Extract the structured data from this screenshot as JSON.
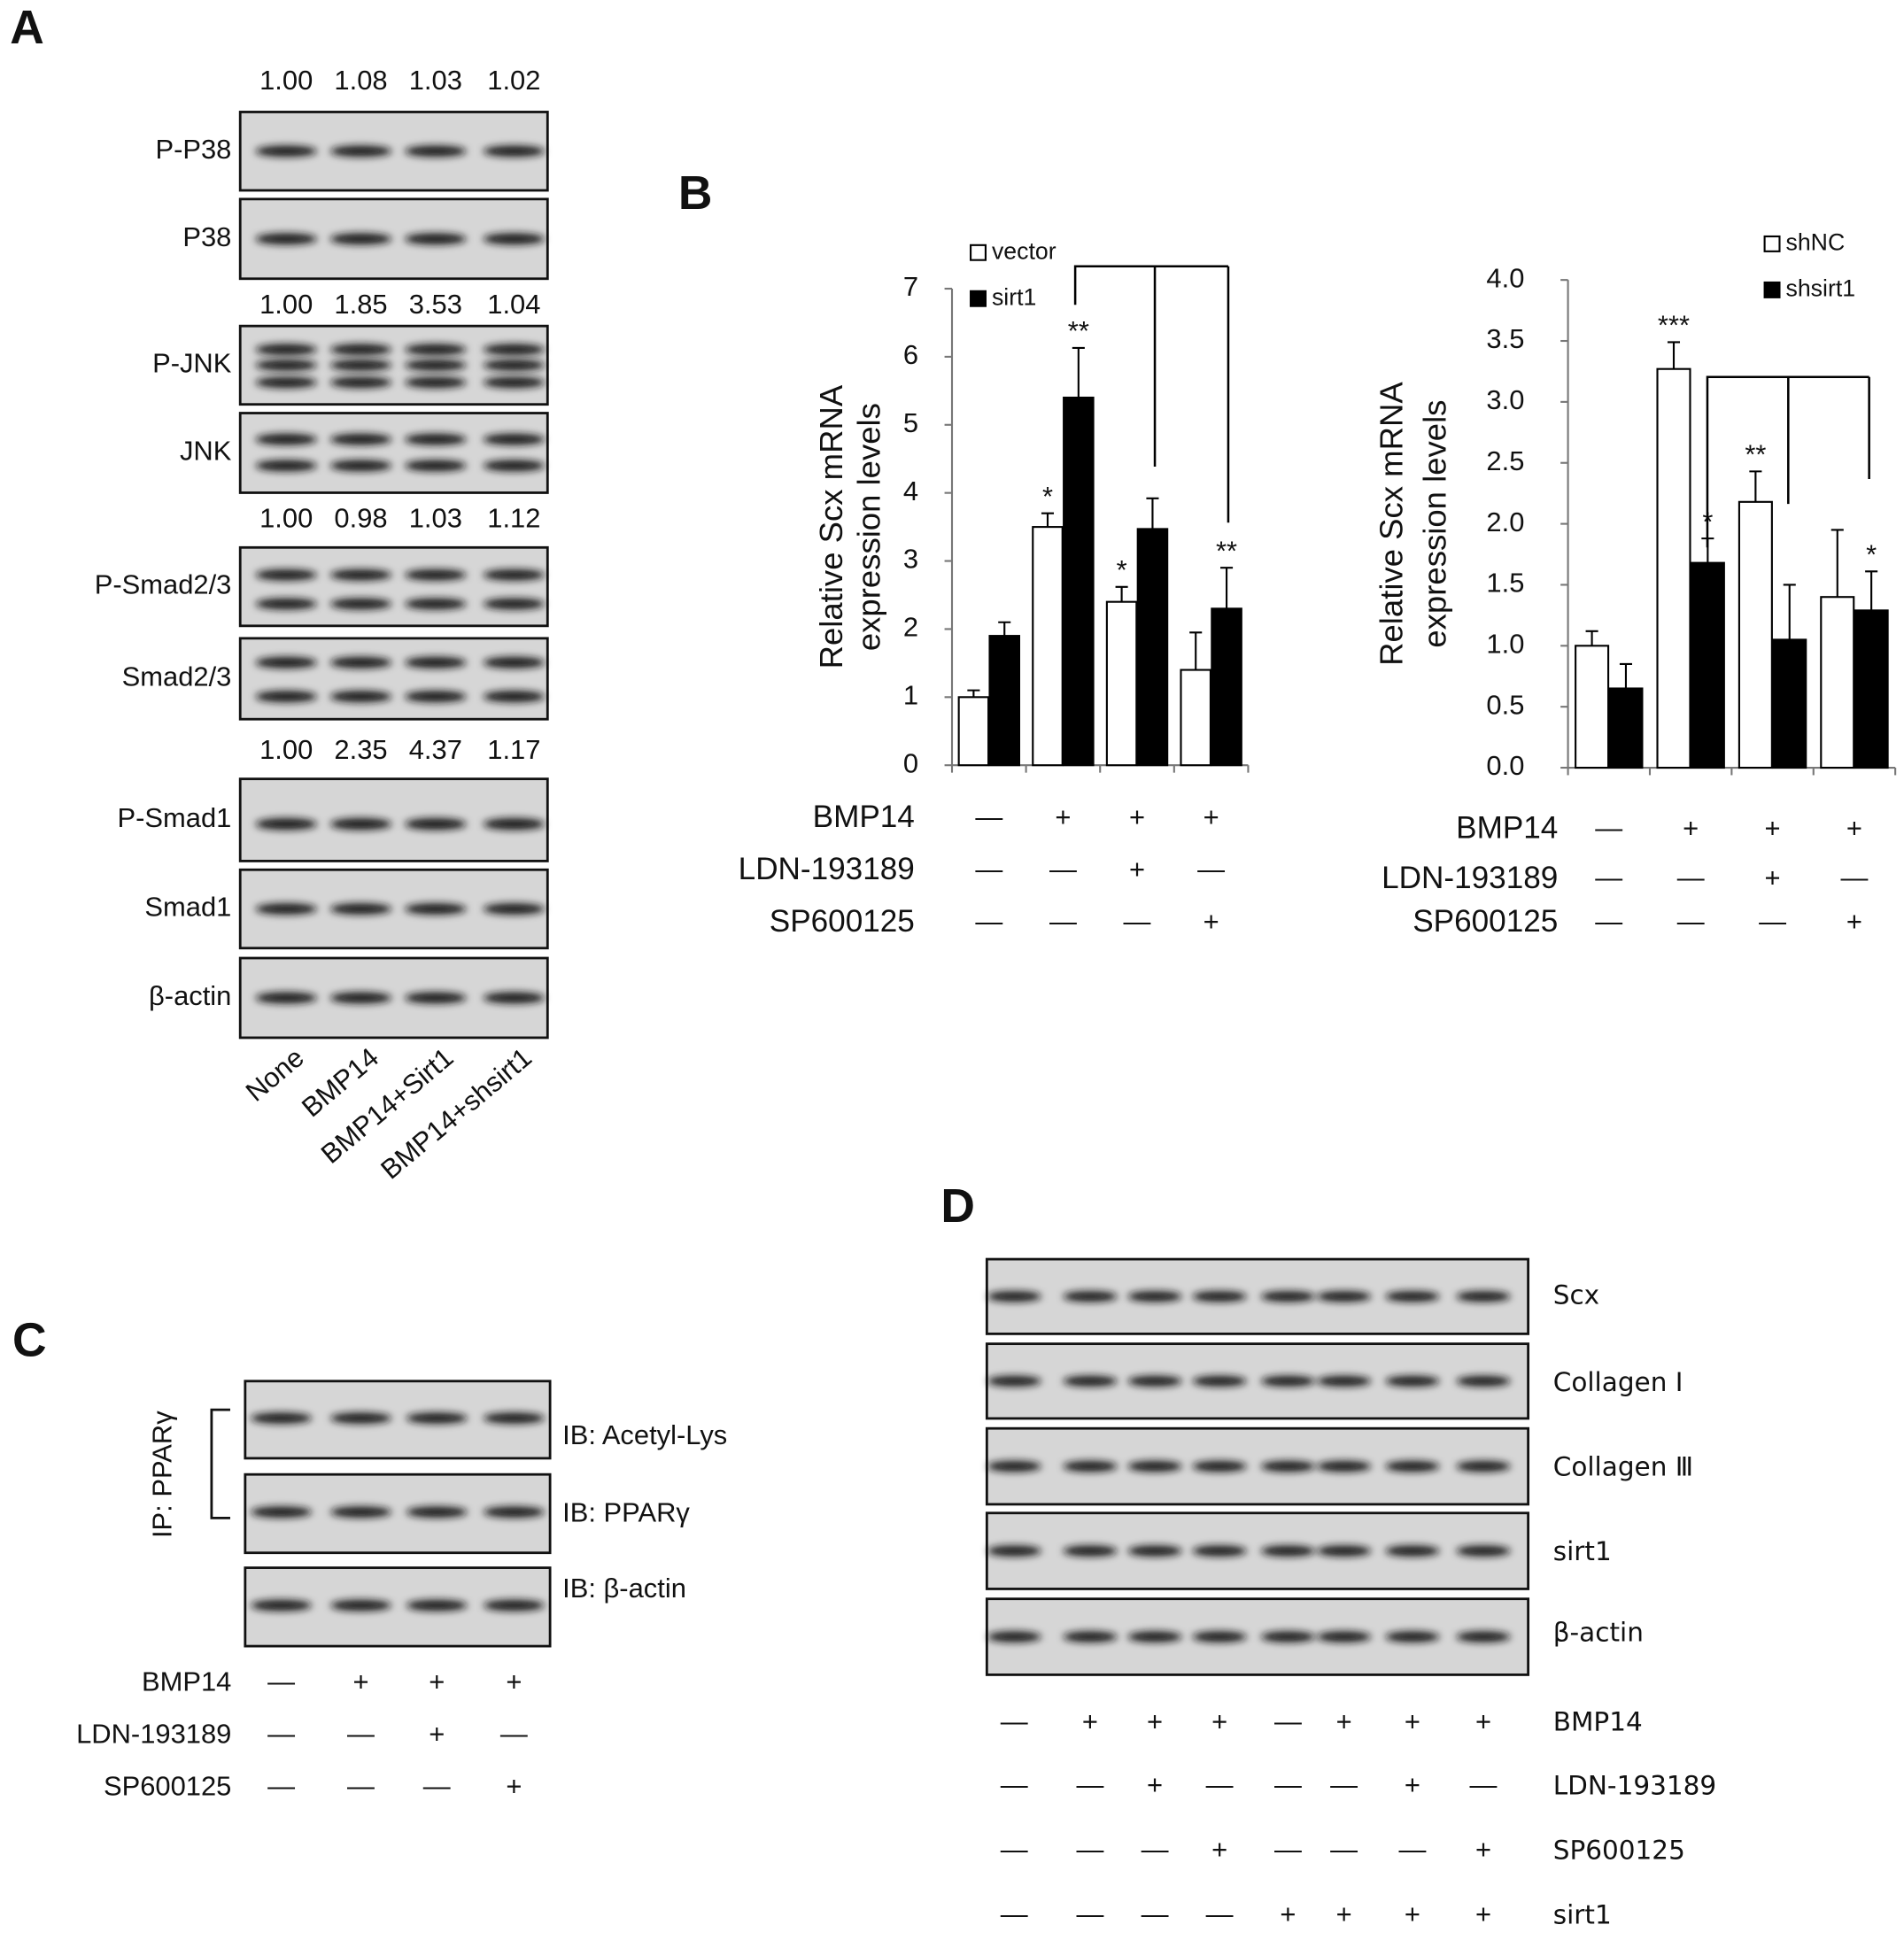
{
  "panel_labels": {
    "a": "A",
    "b": "B",
    "c": "C",
    "d": "D"
  },
  "panel_a": {
    "groups": [
      {
        "ratios": [
          "1.00",
          "1.08",
          "1.03",
          "1.02"
        ],
        "blots": [
          "P-P38",
          "P38"
        ]
      },
      {
        "ratios": [
          "1.00",
          "1.85",
          "3.53",
          "1.04"
        ],
        "blots": [
          "P-JNK",
          "JNK"
        ]
      },
      {
        "ratios": [
          "1.00",
          "0.98",
          "1.03",
          "1.12"
        ],
        "blots": [
          "P-Smad2/3",
          "Smad2/3"
        ]
      },
      {
        "ratios": [
          "1.00",
          "2.35",
          "4.37",
          "1.17"
        ],
        "blots": [
          "P-Smad1",
          "Smad1",
          "β-actin"
        ]
      }
    ],
    "lanes": [
      "None",
      "BMP14",
      "BMP14+Sirt1",
      "BMP14+shsirt1"
    ]
  },
  "chart_data": [
    {
      "type": "bar",
      "ylabel": [
        "Relative Scx mRNA",
        "expression levels"
      ],
      "categories": [
        null,
        null,
        null,
        null
      ],
      "ylim": [
        0,
        7
      ],
      "yticks": [
        0,
        1,
        2,
        3,
        4,
        5,
        6,
        7
      ],
      "legend": "upper left",
      "series": [
        {
          "name": "vector",
          "color": "#ffffff",
          "values": [
            1.0,
            3.5,
            2.4,
            1.4
          ],
          "errors": [
            0.1,
            0.2,
            0.22,
            0.55
          ],
          "significance": [
            null,
            "*",
            "*",
            null
          ]
        },
        {
          "name": "sirt1",
          "color": "#000000",
          "values": [
            1.9,
            5.4,
            3.47,
            2.3
          ],
          "errors": [
            0.2,
            0.73,
            0.45,
            0.6
          ],
          "significance": [
            null,
            "**",
            null,
            "**"
          ]
        }
      ],
      "treatments": [
        {
          "label": "BMP14",
          "marks": [
            "—",
            "+",
            "+",
            "+"
          ]
        },
        {
          "label": "LDN-193189",
          "marks": [
            "—",
            "—",
            "+",
            "—"
          ]
        },
        {
          "label": "SP600125",
          "marks": [
            "—",
            "—",
            "—",
            "+"
          ]
        }
      ]
    },
    {
      "type": "bar",
      "ylabel": [
        "Relative Scx mRNA",
        "expression levels"
      ],
      "categories": [
        null,
        null,
        null,
        null
      ],
      "ylim": [
        0,
        4
      ],
      "yticks": [
        {
          "value": 0,
          "label": "0.0"
        },
        0.5,
        {
          "value": 1,
          "label": "1.0"
        },
        1.5,
        {
          "value": 2,
          "label": "2.0"
        },
        2.5,
        {
          "value": 3,
          "label": "3.0"
        },
        3.5,
        {
          "value": 4,
          "label": "4.0"
        }
      ],
      "legend": "upper right",
      "series": [
        {
          "name": "shNC",
          "color": "#ffffff",
          "values": [
            1.0,
            3.27,
            2.18,
            1.4
          ],
          "errors": [
            0.12,
            0.22,
            0.25,
            0.55
          ],
          "significance": [
            null,
            "***",
            "**",
            null
          ]
        },
        {
          "name": "shsirt1",
          "color": "#000000",
          "values": [
            0.65,
            1.68,
            1.05,
            1.29
          ],
          "errors": [
            0.2,
            0.2,
            0.45,
            0.32
          ],
          "significance": [
            null,
            "*",
            null,
            "*"
          ]
        }
      ],
      "treatments": [
        {
          "label": "BMP14",
          "marks": [
            "—",
            "+",
            "+",
            "+"
          ]
        },
        {
          "label": "LDN-193189",
          "marks": [
            "—",
            "—",
            "+",
            "—"
          ]
        },
        {
          "label": "SP600125",
          "marks": [
            "—",
            "—",
            "—",
            "+"
          ]
        }
      ]
    }
  ],
  "panel_c": {
    "blots": [
      "IB: Acetyl-Lys",
      "IB: PPARγ",
      "IB: β-actin"
    ],
    "ip_label": "IP: PPARγ",
    "treatments": [
      {
        "label": "BMP14",
        "marks": [
          "—",
          "+",
          "+",
          "+"
        ]
      },
      {
        "label": "LDN-193189",
        "marks": [
          "—",
          "—",
          "+",
          "—"
        ]
      },
      {
        "label": "SP600125",
        "marks": [
          "—",
          "—",
          "—",
          "+"
        ]
      }
    ]
  },
  "panel_d": {
    "blots": [
      "Scx",
      "Collagen Ⅰ",
      "Collagen Ⅲ",
      "sirt1",
      "β-actin"
    ],
    "treatments": [
      {
        "label": "BMP14",
        "marks": [
          "—",
          "+",
          "+",
          "+",
          "—",
          "+",
          "+",
          "+"
        ]
      },
      {
        "label": "LDN-193189",
        "marks": [
          "—",
          "—",
          "+",
          "—",
          "—",
          "—",
          "+",
          "—"
        ]
      },
      {
        "label": "SP600125",
        "marks": [
          "—",
          "—",
          "—",
          "+",
          "—",
          "—",
          "—",
          "+"
        ]
      },
      {
        "label": "sirt1",
        "marks": [
          "—",
          "—",
          "—",
          "—",
          "+",
          "+",
          "+",
          "+"
        ]
      }
    ]
  }
}
